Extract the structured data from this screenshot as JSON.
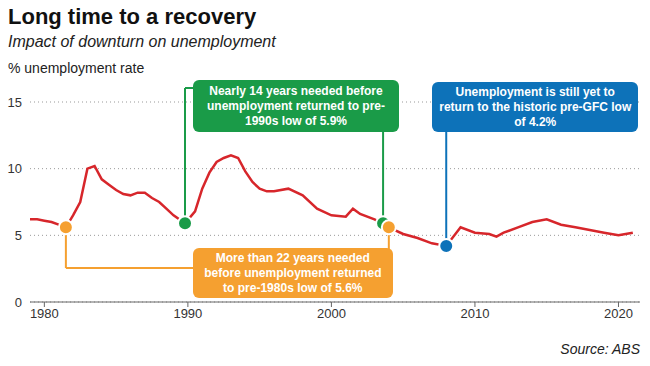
{
  "chart_data": {
    "type": "line",
    "title": "Long time to a recovery",
    "subtitle": "Impact of downturn on unemployment",
    "y_label": "% unemployment rate",
    "source": "Source: ABS",
    "color": "#d7262b",
    "x": [
      1979,
      1979.5,
      1980,
      1980.5,
      1981,
      1981.5,
      1982,
      1982.5,
      1983,
      1983.5,
      1984,
      1984.5,
      1985,
      1985.5,
      1986,
      1986.5,
      1987,
      1987.5,
      1988,
      1988.5,
      1989,
      1989.8,
      1990.5,
      1991,
      1991.5,
      1992,
      1992.5,
      1993,
      1993.5,
      1994,
      1994.5,
      1995,
      1995.5,
      1996,
      1997,
      1998,
      1999,
      2000,
      2001,
      2001.5,
      2002,
      2003,
      2003.6,
      2004,
      2005,
      2006,
      2007,
      2008,
      2009,
      2010,
      2011,
      2011.5,
      2012,
      2013,
      2014,
      2015,
      2016,
      2017,
      2018,
      2019,
      2019.5,
      2020,
      2021
    ],
    "values": [
      6.2,
      6.2,
      6.1,
      6.0,
      5.8,
      5.6,
      6.5,
      7.5,
      10.0,
      10.2,
      9.2,
      8.8,
      8.4,
      8.1,
      8.0,
      8.2,
      8.2,
      7.8,
      7.5,
      7.0,
      6.5,
      5.9,
      6.8,
      8.5,
      9.7,
      10.5,
      10.8,
      11.0,
      10.8,
      9.8,
      9.0,
      8.5,
      8.3,
      8.3,
      8.5,
      8.0,
      7.0,
      6.5,
      6.4,
      7.0,
      6.6,
      6.2,
      5.9,
      5.6,
      5.1,
      4.8,
      4.4,
      4.2,
      5.6,
      5.2,
      5.1,
      4.9,
      5.2,
      5.6,
      6.0,
      6.2,
      5.8,
      5.6,
      5.4,
      5.2,
      5.1,
      5.0,
      5.2
    ],
    "xlim": [
      1979,
      2021.5
    ],
    "xticks": [
      1980,
      1990,
      2000,
      2010,
      2020
    ],
    "ylim": [
      0,
      15
    ],
    "yticks": [
      0,
      5,
      10,
      15
    ],
    "grid": true,
    "annotations": [
      {
        "text": "Nearly 14 years needed before unemployment returned to pre-1990s low of 5.9%",
        "color": "#1a9b48",
        "points": [
          {
            "x": 1989.8,
            "y": 5.9
          },
          {
            "x": 2003.6,
            "y": 5.9
          }
        ]
      },
      {
        "text": "Unemployment is still yet to return to the historic pre-GFC low of 4.2%",
        "color": "#0d72b9",
        "points": [
          {
            "x": 2008,
            "y": 4.2
          }
        ]
      },
      {
        "text": "More than 22 years needed before unemployment returned to pre-1980s low of 5.6%",
        "color": "#f5a030",
        "points": [
          {
            "x": 1981.5,
            "y": 5.6
          },
          {
            "x": 2004,
            "y": 5.6
          }
        ]
      }
    ]
  }
}
